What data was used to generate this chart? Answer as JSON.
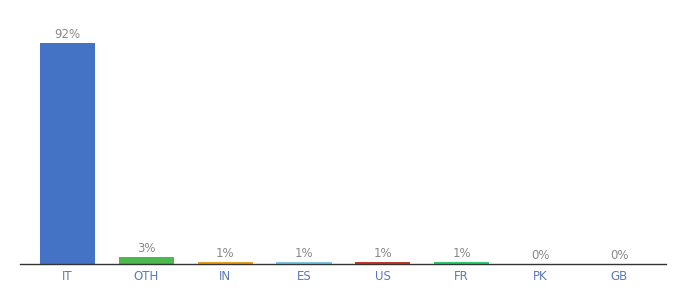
{
  "categories": [
    "IT",
    "OTH",
    "IN",
    "ES",
    "US",
    "FR",
    "PK",
    "GB"
  ],
  "values": [
    92,
    3,
    1,
    1,
    1,
    1,
    0,
    0
  ],
  "labels": [
    "92%",
    "3%",
    "1%",
    "1%",
    "1%",
    "1%",
    "0%",
    "0%"
  ],
  "bar_colors": [
    "#4472c4",
    "#4db84d",
    "#e8a020",
    "#7ec8e3",
    "#c0392b",
    "#2ecc71",
    "#c8c8c8",
    "#c8c8c8"
  ],
  "ylim": [
    0,
    100
  ],
  "background_color": "#ffffff",
  "label_fontsize": 8.5,
  "tick_fontsize": 8.5,
  "tick_color": "#5a7ab5",
  "label_color": "#888888"
}
